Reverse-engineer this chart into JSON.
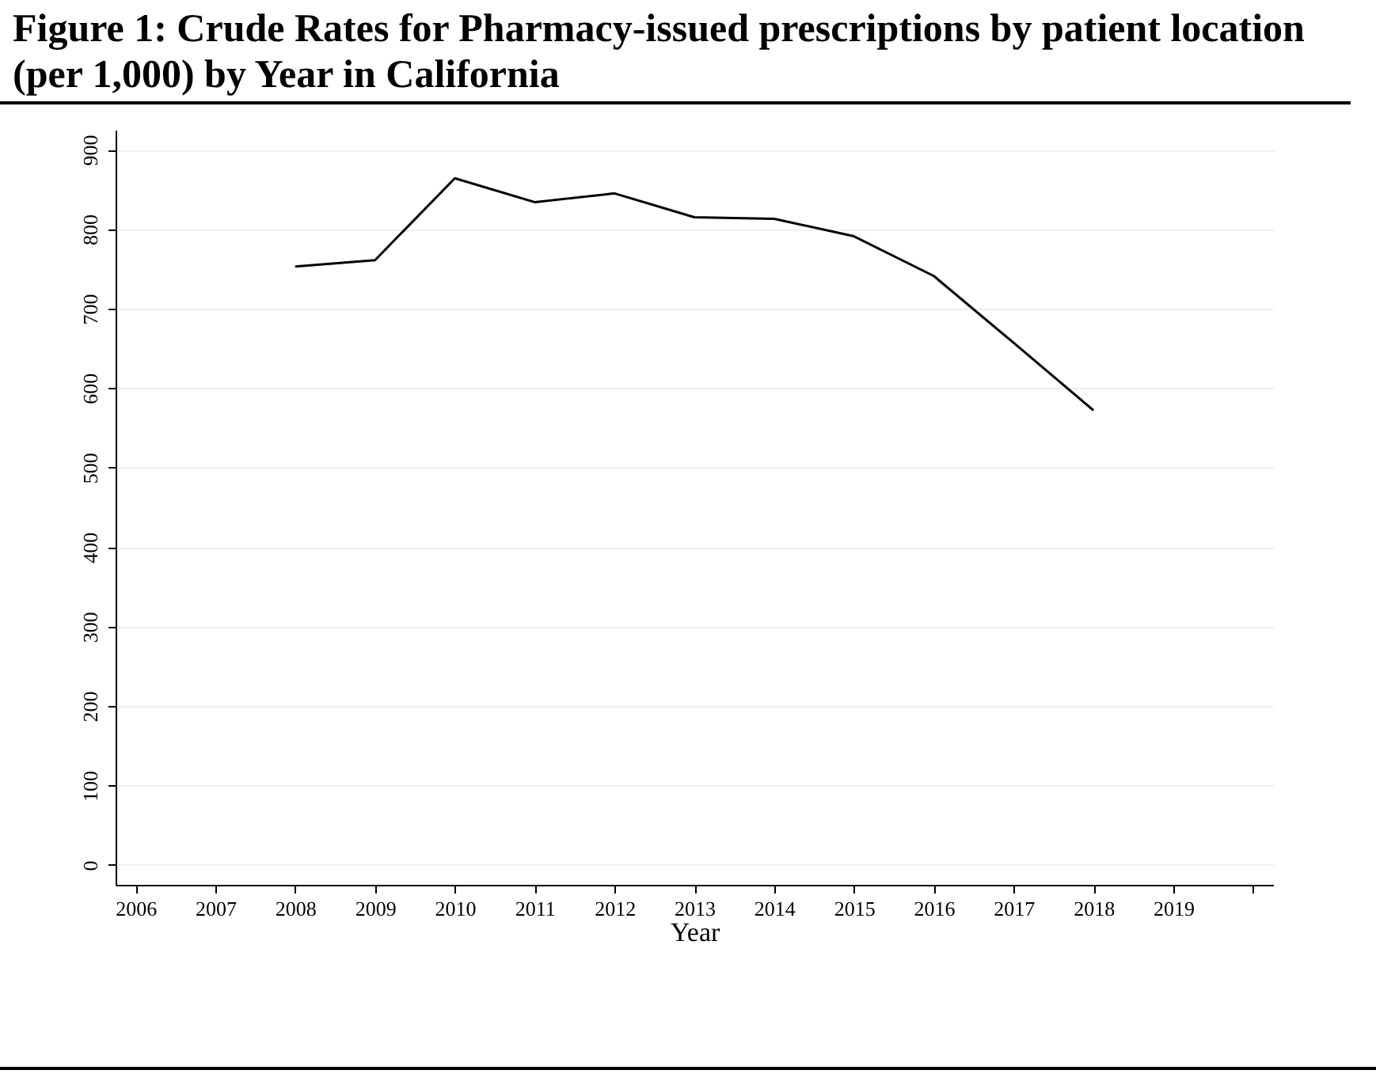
{
  "chart_data": {
    "type": "line",
    "title": "Figure 1: Crude Rates for Pharmacy-issued prescriptions by patient location (per 1,000) by Year in California",
    "xlabel": "Year",
    "x": [
      2008,
      2009,
      2010,
      2011,
      2012,
      2013,
      2014,
      2015,
      2016,
      2017,
      2018
    ],
    "series": [
      {
        "color": "#000000",
        "values": [
          753,
          761,
          864,
          834,
          845,
          815,
          813,
          791,
          741,
          657,
          572
        ]
      }
    ],
    "xlim": [
      2005.75,
      2020.25
    ],
    "xticks": [
      2006,
      2007,
      2008,
      2009,
      2010,
      2011,
      2012,
      2013,
      2014,
      2015,
      2016,
      2017,
      2018,
      2019,
      {
        "value": 2020,
        "label": null
      }
    ],
    "ylim": [
      -25,
      925
    ],
    "yticks": [
      0,
      100,
      200,
      300,
      400,
      500,
      600,
      700,
      800,
      900
    ],
    "grid": "y",
    "legend": false,
    "marker": "none",
    "line_style": "solid"
  }
}
